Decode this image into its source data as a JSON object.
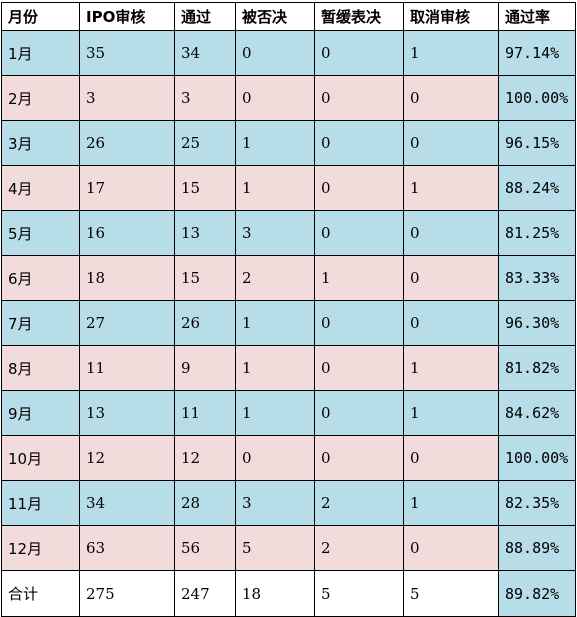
{
  "colors": {
    "row_blue": "#b6dde8",
    "row_pink": "#f2dcdb",
    "rate_col": "#b6dde8",
    "total_row": "#ffffff"
  },
  "headers": [
    "月份",
    "IPO审核",
    "通过",
    "被否决",
    "暂缓表决",
    "取消审核",
    "通过率"
  ],
  "rows": [
    {
      "month": "1月",
      "ipo": "35",
      "pass": "34",
      "reject": "0",
      "defer": "0",
      "cancel": "1",
      "rate": "97.14%",
      "color": "blue"
    },
    {
      "month": "2月",
      "ipo": "3",
      "pass": "3",
      "reject": "0",
      "defer": "0",
      "cancel": "0",
      "rate": "100.00%",
      "color": "pink"
    },
    {
      "month": "3月",
      "ipo": "26",
      "pass": "25",
      "reject": "1",
      "defer": "0",
      "cancel": "0",
      "rate": "96.15%",
      "color": "blue"
    },
    {
      "month": "4月",
      "ipo": "17",
      "pass": "15",
      "reject": "1",
      "defer": "0",
      "cancel": "1",
      "rate": "88.24%",
      "color": "pink"
    },
    {
      "month": "5月",
      "ipo": "16",
      "pass": "13",
      "reject": "3",
      "defer": "0",
      "cancel": "0",
      "rate": "81.25%",
      "color": "blue"
    },
    {
      "month": "6月",
      "ipo": "18",
      "pass": "15",
      "reject": "2",
      "defer": "1",
      "cancel": "0",
      "rate": "83.33%",
      "color": "pink"
    },
    {
      "month": "7月",
      "ipo": "27",
      "pass": "26",
      "reject": "1",
      "defer": "0",
      "cancel": "0",
      "rate": "96.30%",
      "color": "blue"
    },
    {
      "month": "8月",
      "ipo": "11",
      "pass": "9",
      "reject": "1",
      "defer": "0",
      "cancel": "1",
      "rate": "81.82%",
      "color": "pink"
    },
    {
      "month": "9月",
      "ipo": "13",
      "pass": "11",
      "reject": "1",
      "defer": "0",
      "cancel": "1",
      "rate": "84.62%",
      "color": "blue"
    },
    {
      "month": "10月",
      "ipo": "12",
      "pass": "12",
      "reject": "0",
      "defer": "0",
      "cancel": "0",
      "rate": "100.00%",
      "color": "pink"
    },
    {
      "month": "11月",
      "ipo": "34",
      "pass": "28",
      "reject": "3",
      "defer": "2",
      "cancel": "1",
      "rate": "82.35%",
      "color": "blue"
    },
    {
      "month": "12月",
      "ipo": "63",
      "pass": "56",
      "reject": "5",
      "defer": "2",
      "cancel": "0",
      "rate": "88.89%",
      "color": "pink"
    }
  ],
  "total": {
    "label": "合计",
    "ipo": "275",
    "pass": "247",
    "reject": "18",
    "defer": "5",
    "cancel": "5",
    "rate": "89.82%"
  }
}
